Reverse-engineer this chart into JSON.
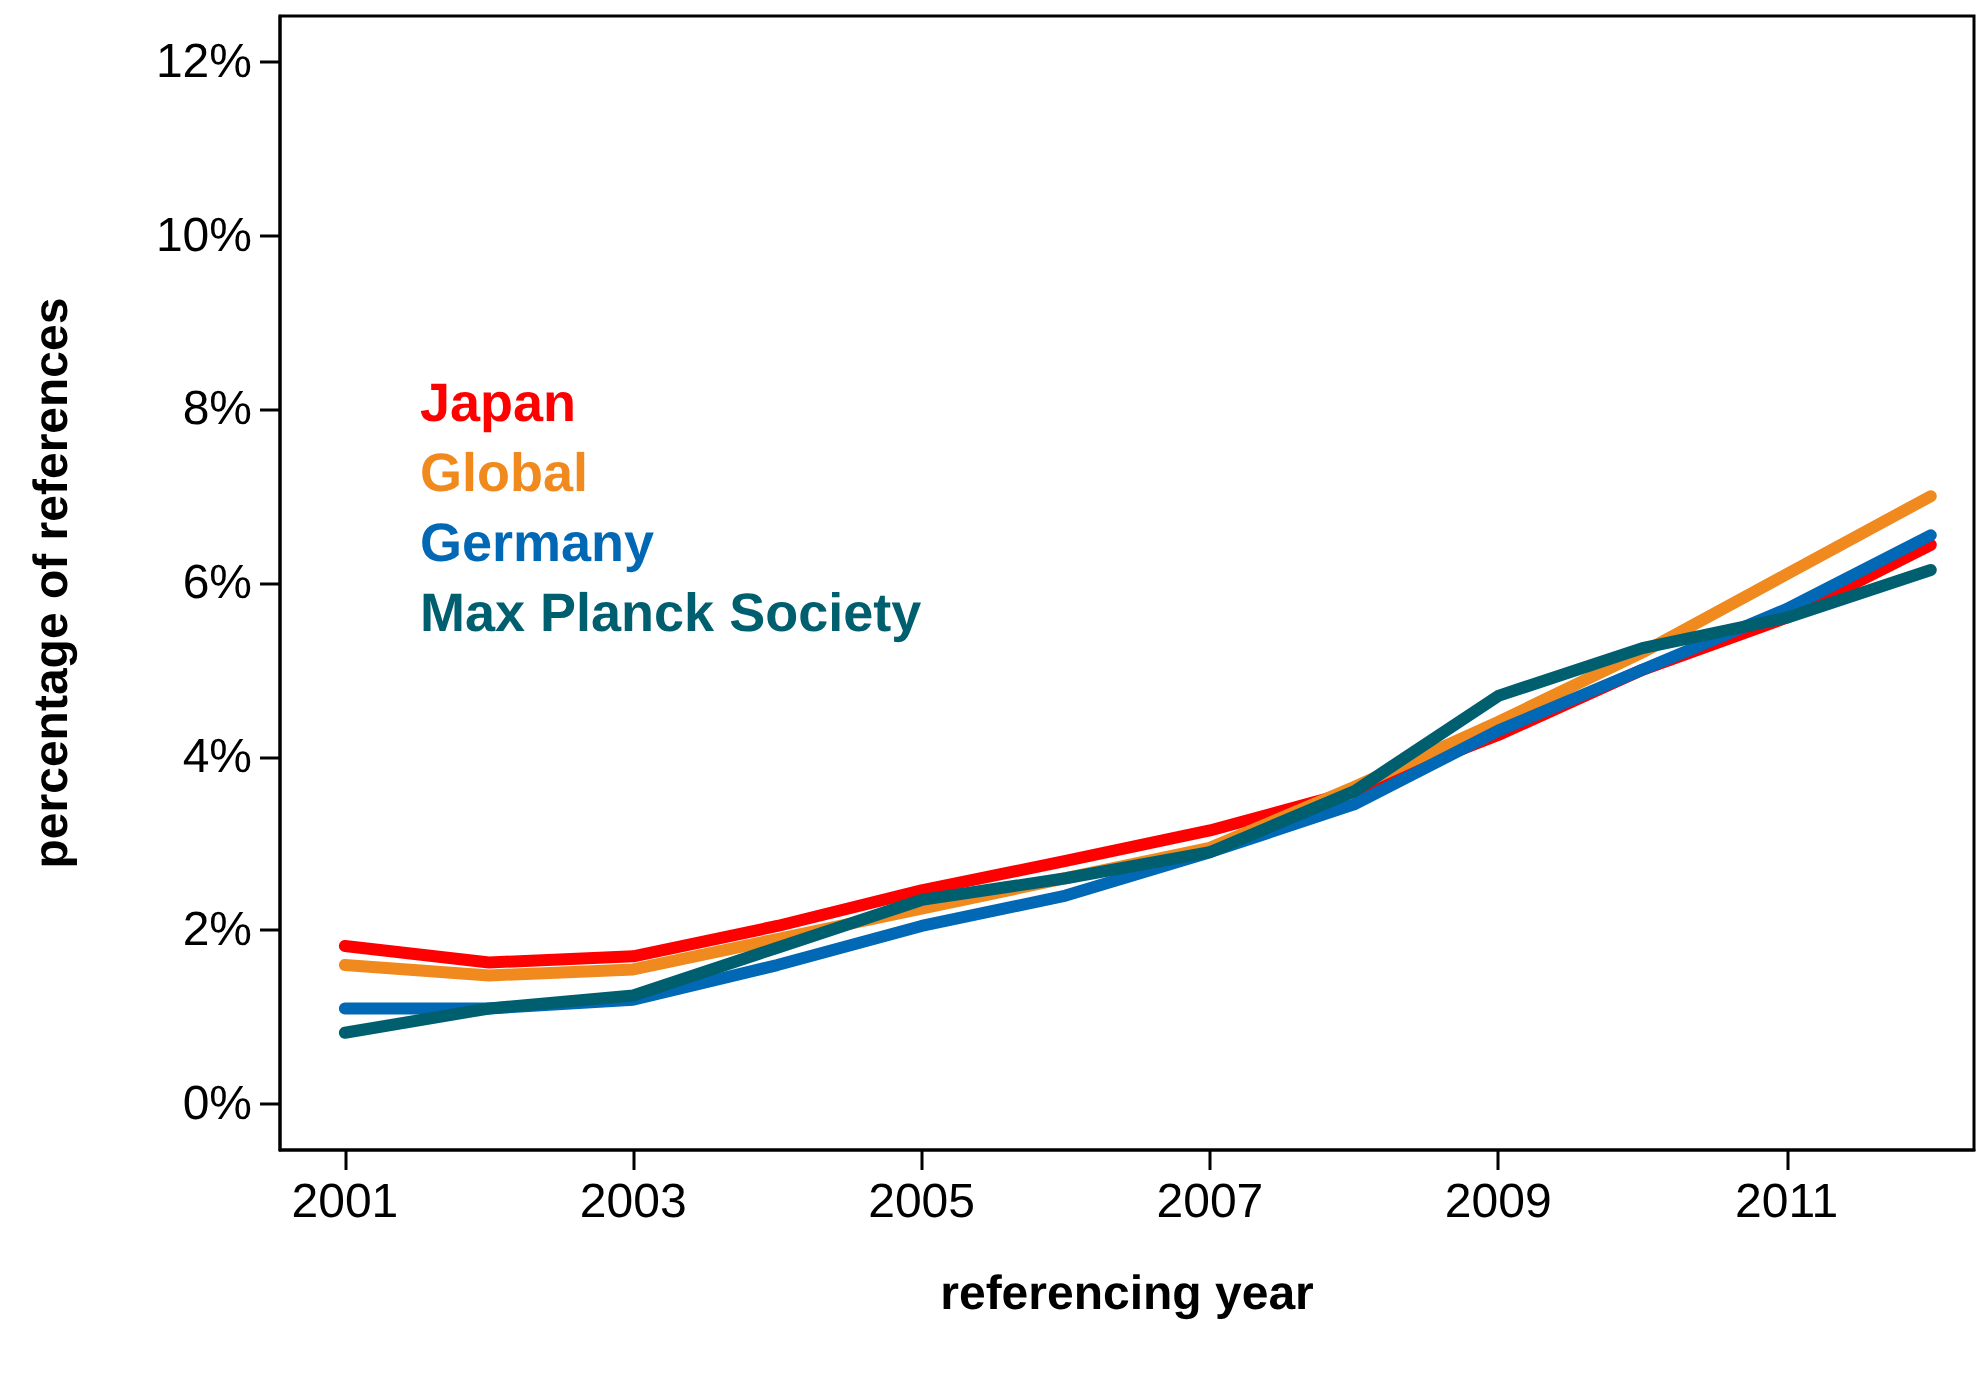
{
  "chart_data": {
    "type": "line",
    "xlabel": "referencing year",
    "ylabel": "percentage of references",
    "x": [
      2001,
      2002,
      2003,
      2004,
      2005,
      2006,
      2007,
      2008,
      2009,
      2010,
      2011,
      2012
    ],
    "series": [
      {
        "name": "Japan",
        "color": "#ff0000",
        "values": [
          1.82,
          1.63,
          1.7,
          2.05,
          2.46,
          2.8,
          3.15,
          3.6,
          4.25,
          5.0,
          5.6,
          6.44
        ]
      },
      {
        "name": "Global",
        "color": "#f0891e",
        "values": [
          1.6,
          1.48,
          1.55,
          1.9,
          2.25,
          2.6,
          2.95,
          3.65,
          4.4,
          5.2,
          6.1,
          7.0
        ]
      },
      {
        "name": "Germany",
        "color": "#0068b4",
        "values": [
          1.1,
          1.1,
          1.2,
          1.6,
          2.05,
          2.4,
          2.9,
          3.45,
          4.3,
          5.0,
          5.7,
          6.55
        ]
      },
      {
        "name": "Max Planck Society",
        "color": "#005f6e",
        "values": [
          0.82,
          1.1,
          1.25,
          1.8,
          2.35,
          2.6,
          2.9,
          3.6,
          4.7,
          5.25,
          5.6,
          6.15
        ]
      }
    ],
    "xlim": [
      2000.55,
      2012.3
    ],
    "ylim": [
      -0.53,
      12.53
    ],
    "xticks": [
      2001,
      2003,
      2005,
      2007,
      2009,
      2011
    ],
    "yticks": [
      {
        "value": 0,
        "label": "0%"
      },
      {
        "value": 2,
        "label": "2%"
      },
      {
        "value": 4,
        "label": "4%"
      },
      {
        "value": 6,
        "label": "6%"
      },
      {
        "value": 8,
        "label": "8%"
      },
      {
        "value": 10,
        "label": "10%"
      },
      {
        "value": 12,
        "label": "12%"
      }
    ],
    "grid": false,
    "legend": "top left",
    "marker": "none",
    "line_style": "solid"
  }
}
